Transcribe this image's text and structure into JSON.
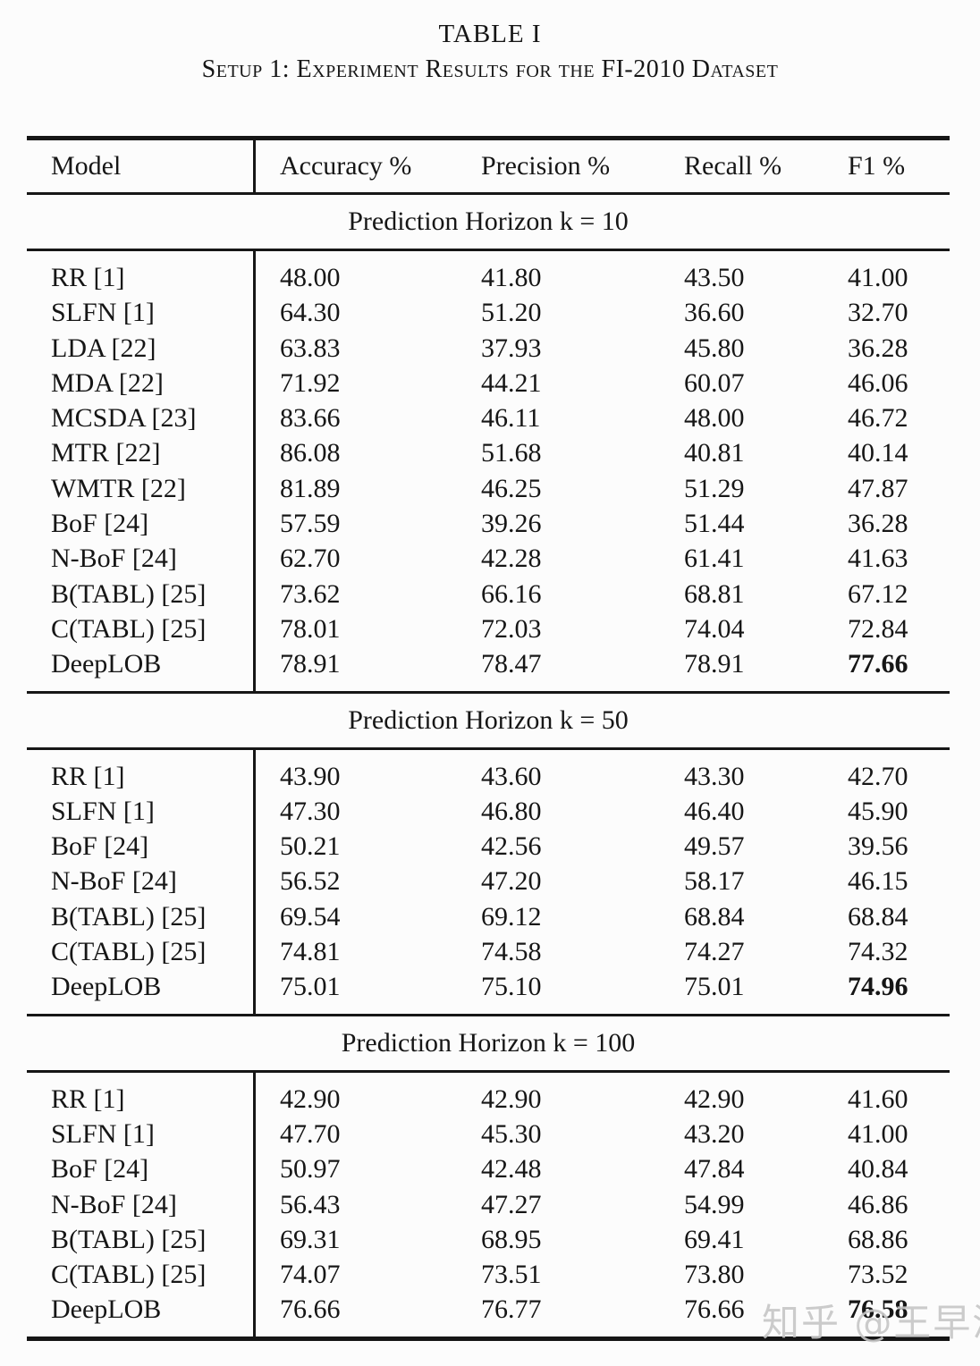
{
  "table_label": "TABLE I",
  "table_caption": "Setup 1: Experiment Results for the FI-2010 Dataset",
  "columns": {
    "model": "Model",
    "accuracy": "Accuracy %",
    "precision": "Precision %",
    "recall": "Recall %",
    "f1": "F1 %"
  },
  "sections": [
    {
      "header": "Prediction Horizon k = 10",
      "rows": [
        {
          "model": "RR [1]",
          "accuracy": "48.00",
          "precision": "41.80",
          "recall": "43.50",
          "f1": "41.00",
          "f1_bold": false
        },
        {
          "model": "SLFN [1]",
          "accuracy": "64.30",
          "precision": "51.20",
          "recall": "36.60",
          "f1": "32.70",
          "f1_bold": false
        },
        {
          "model": "LDA [22]",
          "accuracy": "63.83",
          "precision": "37.93",
          "recall": "45.80",
          "f1": "36.28",
          "f1_bold": false
        },
        {
          "model": "MDA [22]",
          "accuracy": "71.92",
          "precision": "44.21",
          "recall": "60.07",
          "f1": "46.06",
          "f1_bold": false
        },
        {
          "model": "MCSDA [23]",
          "accuracy": "83.66",
          "precision": "46.11",
          "recall": "48.00",
          "f1": "46.72",
          "f1_bold": false
        },
        {
          "model": "MTR [22]",
          "accuracy": "86.08",
          "precision": "51.68",
          "recall": "40.81",
          "f1": "40.14",
          "f1_bold": false
        },
        {
          "model": "WMTR [22]",
          "accuracy": "81.89",
          "precision": "46.25",
          "recall": "51.29",
          "f1": "47.87",
          "f1_bold": false
        },
        {
          "model": "BoF [24]",
          "accuracy": "57.59",
          "precision": "39.26",
          "recall": "51.44",
          "f1": "36.28",
          "f1_bold": false
        },
        {
          "model": "N-BoF [24]",
          "accuracy": "62.70",
          "precision": "42.28",
          "recall": "61.41",
          "f1": "41.63",
          "f1_bold": false
        },
        {
          "model": "B(TABL) [25]",
          "accuracy": "73.62",
          "precision": "66.16",
          "recall": "68.81",
          "f1": "67.12",
          "f1_bold": false
        },
        {
          "model": "C(TABL) [25]",
          "accuracy": "78.01",
          "precision": "72.03",
          "recall": "74.04",
          "f1": "72.84",
          "f1_bold": false
        },
        {
          "model": "DeepLOB",
          "accuracy": "78.91",
          "precision": "78.47",
          "recall": "78.91",
          "f1": "77.66",
          "f1_bold": true
        }
      ]
    },
    {
      "header": "Prediction Horizon k = 50",
      "rows": [
        {
          "model": "RR [1]",
          "accuracy": "43.90",
          "precision": "43.60",
          "recall": "43.30",
          "f1": "42.70",
          "f1_bold": false
        },
        {
          "model": "SLFN [1]",
          "accuracy": "47.30",
          "precision": "46.80",
          "recall": "46.40",
          "f1": "45.90",
          "f1_bold": false
        },
        {
          "model": "BoF [24]",
          "accuracy": "50.21",
          "precision": "42.56",
          "recall": "49.57",
          "f1": "39.56",
          "f1_bold": false
        },
        {
          "model": "N-BoF [24]",
          "accuracy": "56.52",
          "precision": "47.20",
          "recall": "58.17",
          "f1": "46.15",
          "f1_bold": false
        },
        {
          "model": "B(TABL) [25]",
          "accuracy": "69.54",
          "precision": "69.12",
          "recall": "68.84",
          "f1": "68.84",
          "f1_bold": false
        },
        {
          "model": "C(TABL) [25]",
          "accuracy": "74.81",
          "precision": "74.58",
          "recall": "74.27",
          "f1": "74.32",
          "f1_bold": false
        },
        {
          "model": "DeepLOB",
          "accuracy": "75.01",
          "precision": "75.10",
          "recall": "75.01",
          "f1": "74.96",
          "f1_bold": true
        }
      ]
    },
    {
      "header": "Prediction Horizon k = 100",
      "rows": [
        {
          "model": "RR [1]",
          "accuracy": "42.90",
          "precision": "42.90",
          "recall": "42.90",
          "f1": "41.60",
          "f1_bold": false
        },
        {
          "model": "SLFN [1]",
          "accuracy": "47.70",
          "precision": "45.30",
          "recall": "43.20",
          "f1": "41.00",
          "f1_bold": false
        },
        {
          "model": "BoF [24]",
          "accuracy": "50.97",
          "precision": "42.48",
          "recall": "47.84",
          "f1": "40.84",
          "f1_bold": false
        },
        {
          "model": "N-BoF [24]",
          "accuracy": "56.43",
          "precision": "47.27",
          "recall": "54.99",
          "f1": "46.86",
          "f1_bold": false
        },
        {
          "model": "B(TABL) [25]",
          "accuracy": "69.31",
          "precision": "68.95",
          "recall": "69.41",
          "f1": "68.86",
          "f1_bold": false
        },
        {
          "model": "C(TABL) [25]",
          "accuracy": "74.07",
          "precision": "73.51",
          "recall": "73.80",
          "f1": "73.52",
          "f1_bold": false
        },
        {
          "model": "DeepLOB",
          "accuracy": "76.66",
          "precision": "76.77",
          "recall": "76.66",
          "f1": "76.58",
          "f1_bold": true
        }
      ]
    }
  ],
  "watermark": "知乎 @王早涵",
  "colors": {
    "text": "#161616",
    "rule": "#161616",
    "watermark": "#c6c6c6"
  }
}
